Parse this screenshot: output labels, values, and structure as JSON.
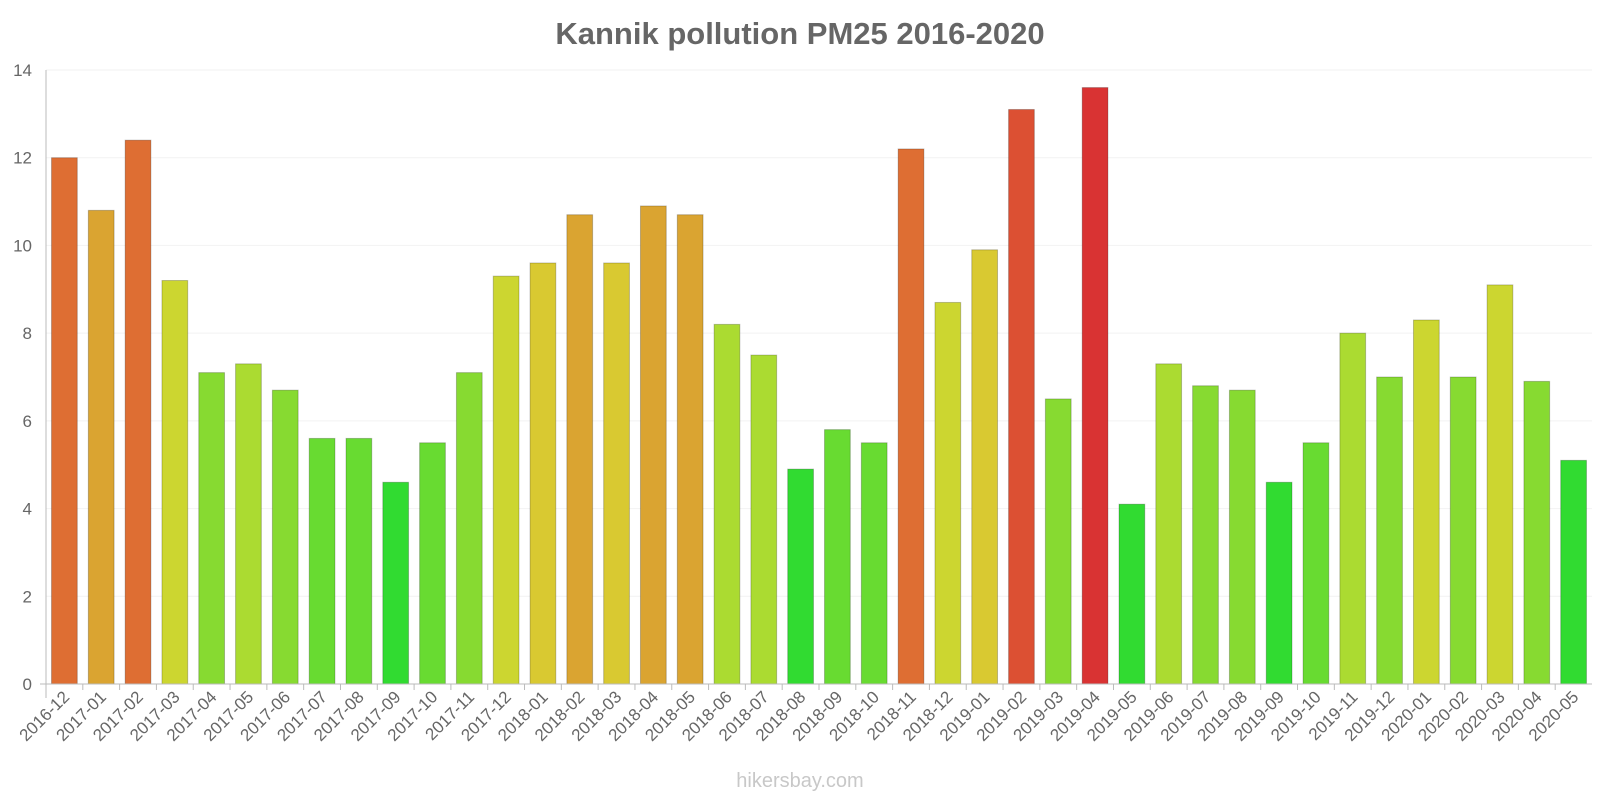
{
  "chart_data": {
    "type": "bar",
    "title": "Kannik pollution PM25 2016-2020",
    "xlabel": "",
    "ylabel": "",
    "ylim": [
      0,
      14
    ],
    "yticks": [
      0,
      2,
      4,
      6,
      8,
      10,
      12,
      14
    ],
    "categories": [
      "2016-12",
      "2017-01",
      "2017-02",
      "2017-03",
      "2017-04",
      "2017-05",
      "2017-06",
      "2017-07",
      "2017-08",
      "2017-09",
      "2017-10",
      "2017-11",
      "2017-12",
      "2018-01",
      "2018-02",
      "2018-03",
      "2018-04",
      "2018-05",
      "2018-06",
      "2018-07",
      "2018-08",
      "2018-09",
      "2018-10",
      "2018-11",
      "2018-12",
      "2019-01",
      "2019-02",
      "2019-03",
      "2019-04",
      "2019-05",
      "2019-06",
      "2019-07",
      "2019-08",
      "2019-09",
      "2019-10",
      "2019-11",
      "2019-12",
      "2020-01",
      "2020-02",
      "2020-03",
      "2020-04",
      "2020-05"
    ],
    "values": [
      12.0,
      10.8,
      12.4,
      9.2,
      7.1,
      7.3,
      6.7,
      5.6,
      5.6,
      4.6,
      5.5,
      7.1,
      9.3,
      9.6,
      10.7,
      9.6,
      10.9,
      10.7,
      8.2,
      7.5,
      4.9,
      5.8,
      5.5,
      12.2,
      8.7,
      9.9,
      13.1,
      6.5,
      13.6,
      4.1,
      7.3,
      6.8,
      6.7,
      4.6,
      5.5,
      8.0,
      7.0,
      8.3,
      7.0,
      9.1,
      6.9,
      5.1
    ],
    "bar_colors": [
      "#de6e33",
      "#daa431",
      "#de6e33",
      "#ccd630",
      "#87da31",
      "#abdb31",
      "#87da31",
      "#68db31",
      "#68db31",
      "#31db31",
      "#68db31",
      "#87da31",
      "#ccd630",
      "#d9c931",
      "#daa431",
      "#d9c931",
      "#daa431",
      "#daa431",
      "#abdb31",
      "#abdb31",
      "#31db31",
      "#68db31",
      "#68db31",
      "#de6e33",
      "#ccd630",
      "#d9c931",
      "#dc5033",
      "#87da31",
      "#d93333",
      "#31db31",
      "#abdb31",
      "#87da31",
      "#87da31",
      "#31db31",
      "#68db31",
      "#abdb31",
      "#87da31",
      "#ccd630",
      "#87da31",
      "#ccd630",
      "#87da31",
      "#31db31"
    ],
    "legend": "none",
    "grid": true
  },
  "watermark": "hikersbay.com"
}
